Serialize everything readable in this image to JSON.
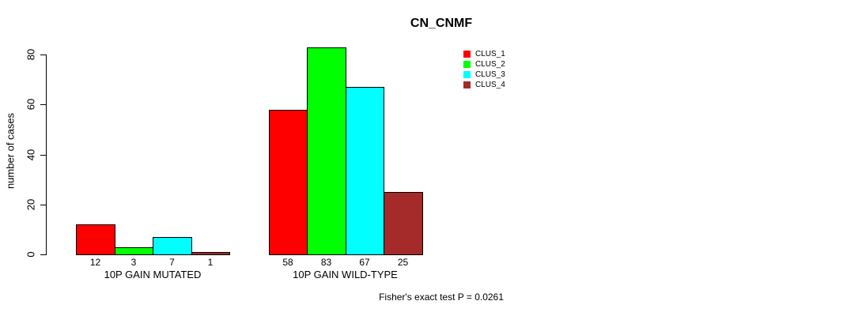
{
  "chart_data": {
    "type": "bar",
    "title": "CN_CNMF",
    "ylabel": "number of cases",
    "xlabel": "",
    "ylim": [
      0,
      85
    ],
    "yticks": [
      0,
      20,
      40,
      60,
      80
    ],
    "grid": false,
    "legend_position": "top-right-outside",
    "background_color": "#ffffff",
    "bar_border_color": "#000000",
    "series": [
      {
        "name": "CLUS_1",
        "color": "#ff0000"
      },
      {
        "name": "CLUS_2",
        "color": "#00ff00"
      },
      {
        "name": "CLUS_3",
        "color": "#00ffff"
      },
      {
        "name": "CLUS_4",
        "color": "#a52a2a"
      }
    ],
    "categories": [
      "10P GAIN MUTATED",
      "10P GAIN WILD-TYPE"
    ],
    "groups": [
      {
        "label": "10P GAIN MUTATED",
        "values": [
          12,
          3,
          7,
          1
        ]
      },
      {
        "label": "10P GAIN WILD-TYPE",
        "values": [
          58,
          83,
          67,
          25
        ]
      }
    ],
    "bar_value_labels_shown": true,
    "annotation": "Fisher's exact test P = 0.0261"
  }
}
